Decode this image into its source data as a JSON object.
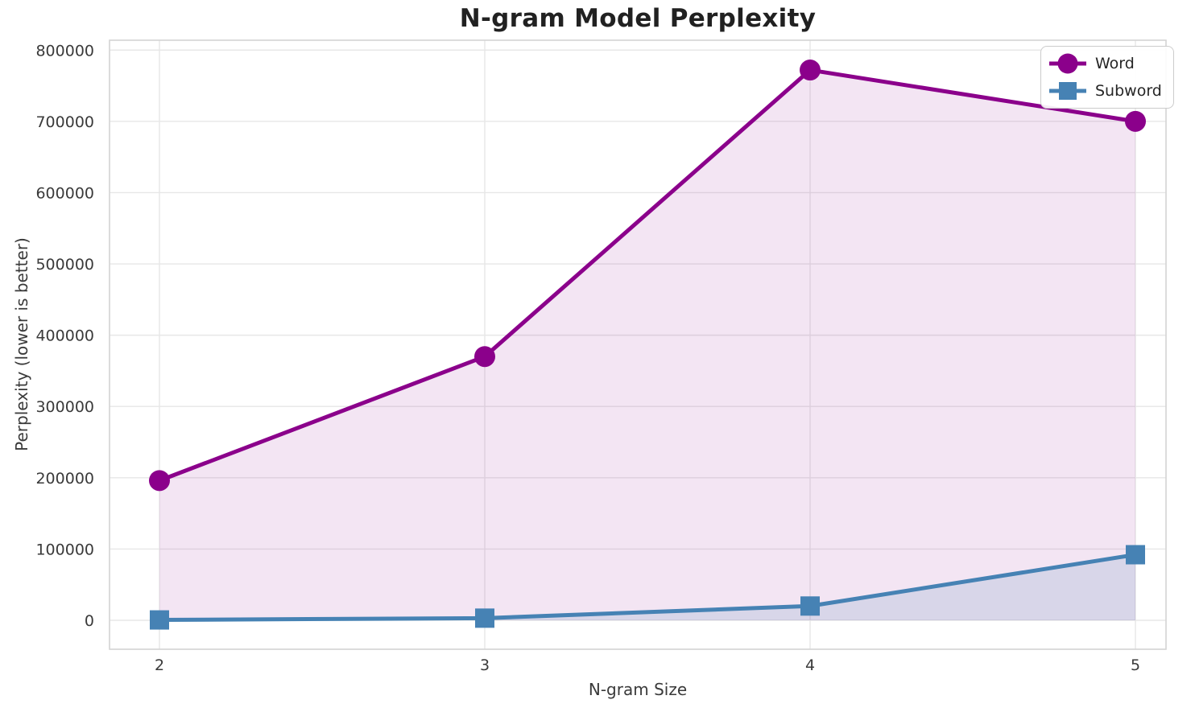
{
  "chart_data": {
    "type": "line",
    "title": "N-gram Model Perplexity",
    "xlabel": "N-gram Size",
    "ylabel": "Perplexity (lower is better)",
    "x": [
      2,
      3,
      4,
      5
    ],
    "xtick_labels": [
      "2",
      "3",
      "4",
      "5"
    ],
    "ytick_values": [
      0,
      100000,
      200000,
      300000,
      400000,
      500000,
      600000,
      700000,
      800000
    ],
    "ytick_labels": [
      "0",
      "100000",
      "200000",
      "300000",
      "400000",
      "500000",
      "600000",
      "700000",
      "800000"
    ],
    "ylim": [
      0,
      800000
    ],
    "grid": true,
    "area_fill": "to_zero",
    "legend_position": "upper right",
    "series": [
      {
        "name": "Word",
        "marker": "circle",
        "color": "#8B008B",
        "fill_opacity": 0.1,
        "values": [
          196000,
          370000,
          772000,
          700000
        ]
      },
      {
        "name": "Subword",
        "marker": "square",
        "color": "#4682B4",
        "fill_opacity": 0.15,
        "values": [
          500,
          3000,
          20000,
          92000
        ]
      }
    ]
  },
  "colors": {
    "background": "#ffffff",
    "grid": "#e7e7e7",
    "spine": "#d4d4d4",
    "tick_text": "#3a3a3a",
    "title_text": "#212121",
    "legend_border": "#cccccc",
    "legend_text": "#262626"
  }
}
